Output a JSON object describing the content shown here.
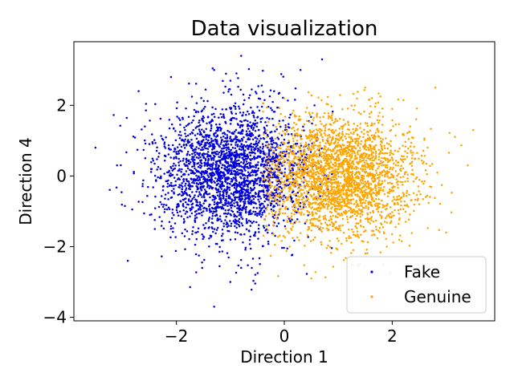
{
  "chart_data": {
    "type": "scatter",
    "title": "Data visualization",
    "xlabel": "Direction 1",
    "ylabel": "Direction 4",
    "xlim": [
      -3.9,
      3.9
    ],
    "ylim": [
      -4.1,
      3.8
    ],
    "xticks": [
      -2,
      0,
      2
    ],
    "yticks": [
      -4,
      -2,
      0,
      2
    ],
    "xtick_labels": [
      "−2",
      "0",
      "2"
    ],
    "ytick_labels": [
      "−4",
      "−2",
      "0",
      "2"
    ],
    "grid": false,
    "legend_position": "lower-right",
    "series": [
      {
        "name": "Fake",
        "color": "#0000dd",
        "marker_size": 1.8,
        "count": 2600,
        "centroid": [
          -1.0,
          0.1
        ],
        "spread": [
          0.7,
          0.95
        ],
        "x_range": [
          -3.5,
          0.9
        ],
        "y_range": [
          -3.8,
          3.4
        ],
        "sample_points": [
          [
            -3.5,
            0.8
          ],
          [
            -2.9,
            -2.4
          ],
          [
            -2.1,
            2.8
          ],
          [
            -1.3,
            3.0
          ],
          [
            -0.8,
            3.4
          ],
          [
            -1.3,
            -3.7
          ],
          [
            -1.0,
            -3.0
          ],
          [
            -2.7,
            2.4
          ],
          [
            -2.0,
            0.5
          ],
          [
            -1.5,
            -1.0
          ],
          [
            -1.0,
            0.3
          ],
          [
            -0.5,
            1.5
          ],
          [
            -0.2,
            -1.4
          ],
          [
            0.3,
            3.0
          ],
          [
            0.7,
            3.3
          ],
          [
            0.8,
            1.0
          ],
          [
            -1.2,
            -0.3
          ],
          [
            -0.8,
            -2.6
          ],
          [
            -2.4,
            -1.5
          ],
          [
            -3.1,
            0.3
          ]
        ]
      },
      {
        "name": "Genuine",
        "color": "#ffa500",
        "marker_size": 1.8,
        "count": 2600,
        "centroid": [
          1.0,
          0.0
        ],
        "spread": [
          0.7,
          0.85
        ],
        "x_range": [
          -0.4,
          3.5
        ],
        "y_range": [
          -2.9,
          2.6
        ],
        "sample_points": [
          [
            3.5,
            1.3
          ],
          [
            3.4,
            0.3
          ],
          [
            3.0,
            -1.6
          ],
          [
            2.8,
            2.5
          ],
          [
            2.5,
            -0.8
          ],
          [
            2.0,
            1.9
          ],
          [
            1.5,
            2.5
          ],
          [
            1.0,
            -0.2
          ],
          [
            0.5,
            -2.9
          ],
          [
            0.1,
            -2.0
          ],
          [
            -0.3,
            0.1
          ],
          [
            1.2,
            1.1
          ],
          [
            0.8,
            0.6
          ],
          [
            1.6,
            -1.2
          ],
          [
            2.2,
            0.4
          ],
          [
            0.3,
            1.6
          ],
          [
            1.9,
            -2.0
          ],
          [
            2.7,
            -0.3
          ],
          [
            0.0,
            2.2
          ],
          [
            1.4,
            -2.5
          ]
        ]
      }
    ]
  }
}
